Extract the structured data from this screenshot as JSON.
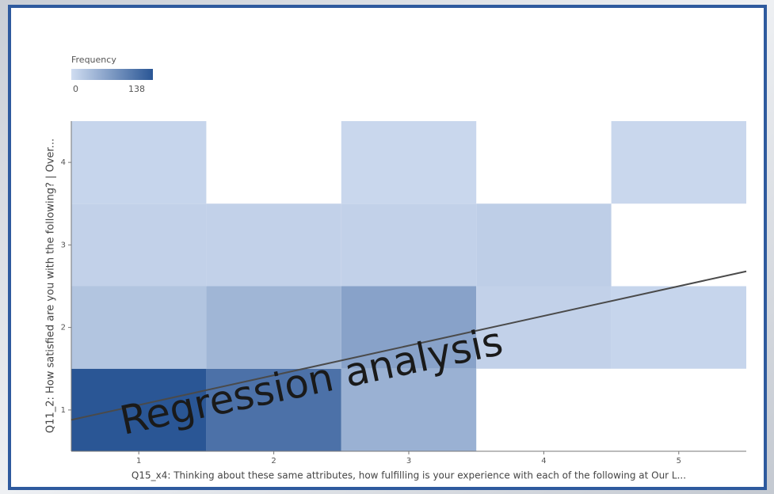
{
  "chart_data": {
    "type": "heatmap",
    "x": [
      1,
      2,
      3,
      4,
      5
    ],
    "y": [
      1,
      2,
      3,
      4
    ],
    "z": [
      [
        138,
        110,
        45,
        null,
        null
      ],
      [
        25,
        40,
        60,
        12,
        8
      ],
      [
        12,
        12,
        12,
        15,
        null
      ],
      [
        8,
        null,
        6,
        null,
        6
      ]
    ],
    "xlim": [
      0.5,
      5.5
    ],
    "ylim": [
      0.5,
      4.5
    ],
    "xticks": [
      1,
      2,
      3,
      4,
      5
    ],
    "yticks": [
      1,
      2,
      3,
      4
    ],
    "colorscale": [
      "#d0ddf1",
      "#2a5695"
    ],
    "colorbar_title": "Frequency",
    "zlim": [
      0,
      138
    ],
    "colorbar_ticks": [
      0,
      138
    ],
    "xlabel": "Q15_x4: Thinking about these same attributes, how fulfilling is your experience with each of the following at Our L...",
    "ylabel": "Q11_2: How satisfied are you with the following? | Over...",
    "regression": {
      "x": [
        0.5,
        5.5
      ],
      "y": [
        0.88,
        2.68
      ],
      "color": "#4a4a4a"
    },
    "annotation": "Regression analysis"
  }
}
